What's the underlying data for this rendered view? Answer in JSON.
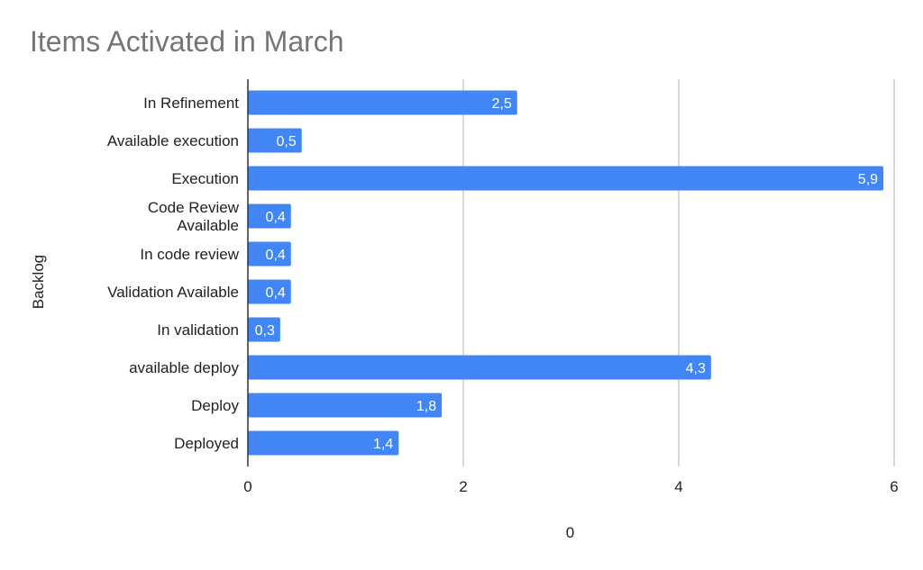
{
  "chart_data": {
    "type": "bar",
    "orientation": "horizontal",
    "title": "Items Activated in March",
    "xlabel": "0",
    "ylabel": "Backlog",
    "categories": [
      "In Refinement",
      "Available execution",
      "Execution",
      "Code Review Available",
      "In code review",
      "Validation Available",
      "In validation",
      "available deploy",
      "Deploy",
      "Deployed"
    ],
    "values": [
      2.5,
      0.5,
      5.9,
      0.4,
      0.4,
      0.4,
      0.3,
      4.3,
      1.8,
      1.4
    ],
    "data_labels": [
      "2,5",
      "0,5",
      "5,9",
      "0,4",
      "0,4",
      "0,4",
      "0,3",
      "4,3",
      "1,8",
      "1,4"
    ],
    "xlim": [
      0,
      6
    ],
    "xticks": [
      0,
      2,
      4,
      6
    ],
    "xtick_labels": [
      "0",
      "2",
      "4",
      "6"
    ],
    "grid": true,
    "bar_color": "#4285f4",
    "grid_color": "#cccccc"
  }
}
